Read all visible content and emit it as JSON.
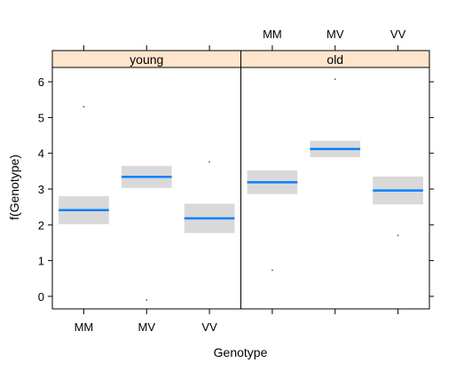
{
  "chart_data": {
    "type": "lattice-effect-plot",
    "xlabel": "Genotype",
    "ylabel": "f(Genotype)",
    "ylim": [
      -0.35,
      6.4
    ],
    "yticks": [
      0,
      1,
      2,
      3,
      4,
      5,
      6
    ],
    "categories": [
      "MM",
      "MV",
      "VV"
    ],
    "panels": [
      {
        "strip": "young",
        "estimates": [
          2.41,
          3.34,
          2.18
        ],
        "lower": [
          2.02,
          3.03,
          1.77
        ],
        "upper": [
          2.8,
          3.65,
          2.59
        ],
        "points": [
          {
            "category": "MM",
            "value": 5.3
          },
          {
            "category": "MV",
            "value": -0.1
          },
          {
            "category": "VV",
            "value": 3.76
          }
        ]
      },
      {
        "strip": "old",
        "estimates": [
          3.19,
          4.12,
          2.96
        ],
        "lower": [
          2.86,
          3.89,
          2.57
        ],
        "upper": [
          3.52,
          4.35,
          3.35
        ],
        "points": [
          {
            "category": "MM",
            "value": 0.73
          },
          {
            "category": "MV",
            "value": 6.07
          },
          {
            "category": "VV",
            "value": 1.7
          }
        ]
      }
    ],
    "colors": {
      "line": "#0080ff",
      "band": "#d9d9d9",
      "strip": "#ffe5cc",
      "axis": "#000000"
    },
    "grid": false
  }
}
